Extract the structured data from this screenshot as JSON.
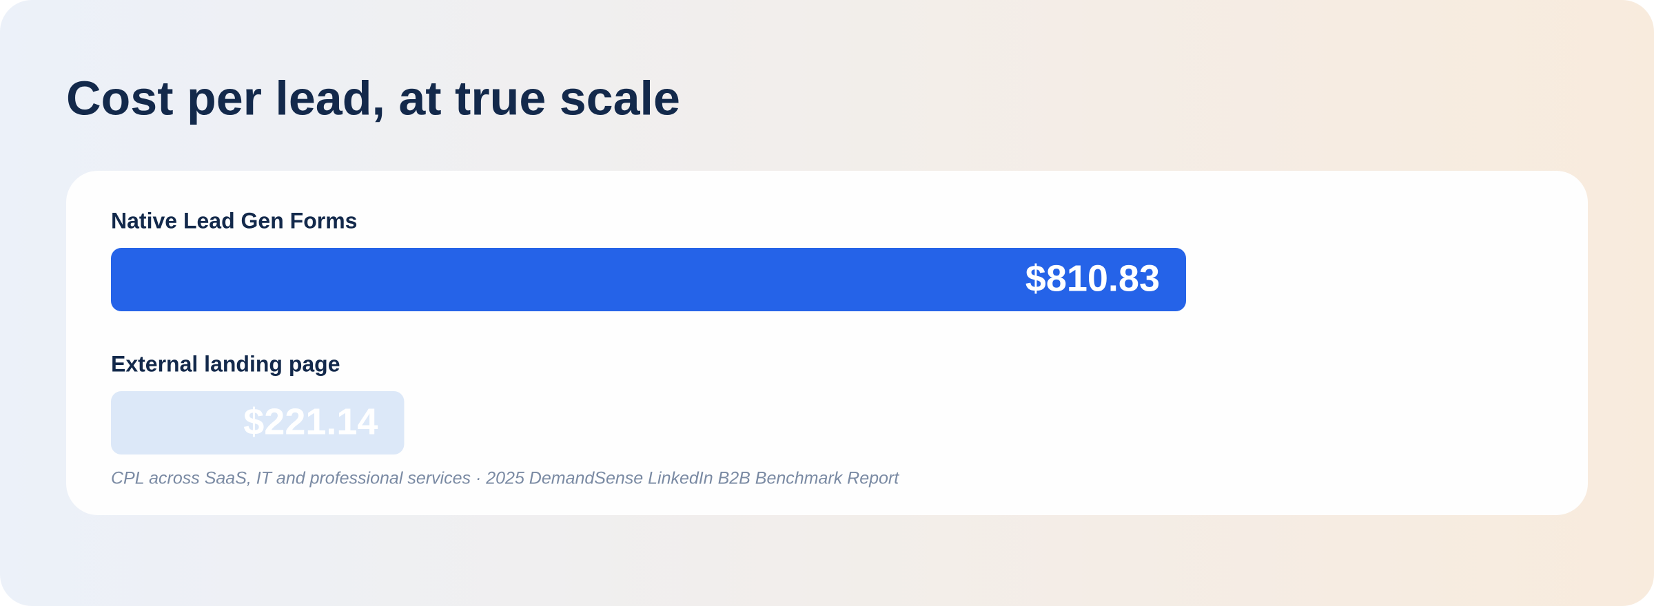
{
  "chart_data": {
    "type": "bar",
    "orientation": "horizontal",
    "title": "Cost per lead, at true scale",
    "categories": [
      "Native Lead Gen Forms",
      "External landing page"
    ],
    "values": [
      810.83,
      221.14
    ],
    "value_labels": [
      "$810.83",
      "$221.14"
    ],
    "colors": [
      "#2563e8",
      "#dce8f8"
    ],
    "caption": "CPL across SaaS, IT and professional services · 2025 DemandSense LinkedIn B2B Benchmark Report"
  }
}
